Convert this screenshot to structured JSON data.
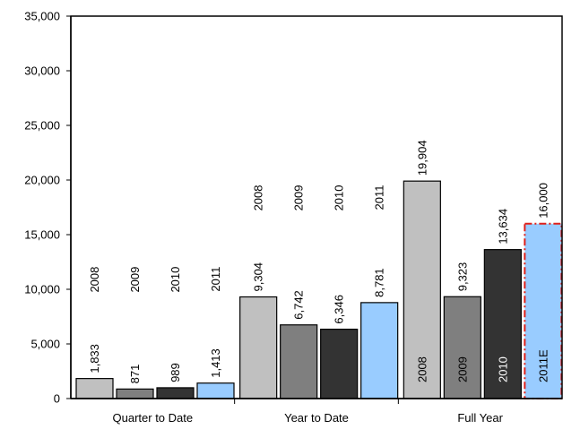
{
  "chart_data": {
    "type": "bar",
    "categories": [
      "Quarter to Date",
      "Year to Date",
      "Full Year"
    ],
    "y_ticks": [
      "0",
      "5,000",
      "10,000",
      "15,000",
      "20,000",
      "25,000",
      "30,000",
      "35,000"
    ],
    "ylim": [
      0,
      35000
    ],
    "grid": false,
    "legend": "none",
    "groups": [
      {
        "category": "Quarter to Date",
        "bars": [
          {
            "year": "2008",
            "value": 1833,
            "value_label": "1,833",
            "color": "#c0c0c0",
            "estimate": false
          },
          {
            "year": "2009",
            "value": 871,
            "value_label": "871",
            "color": "#7f7f7f",
            "estimate": false
          },
          {
            "year": "2010",
            "value": 989,
            "value_label": "989",
            "color": "#333333",
            "estimate": false
          },
          {
            "year": "2011",
            "value": 1413,
            "value_label": "1,413",
            "color": "#99ccff",
            "estimate": false
          }
        ]
      },
      {
        "category": "Year to Date",
        "bars": [
          {
            "year": "2008",
            "value": 9304,
            "value_label": "9,304",
            "color": "#c0c0c0",
            "estimate": false
          },
          {
            "year": "2009",
            "value": 6742,
            "value_label": "6,742",
            "color": "#7f7f7f",
            "estimate": false
          },
          {
            "year": "2010",
            "value": 6346,
            "value_label": "6,346",
            "color": "#333333",
            "estimate": false
          },
          {
            "year": "2011",
            "value": 8781,
            "value_label": "8,781",
            "color": "#99ccff",
            "estimate": false
          }
        ]
      },
      {
        "category": "Full Year",
        "bars": [
          {
            "year": "2008",
            "value": 19904,
            "value_label": "19,904",
            "color": "#c0c0c0",
            "estimate": false
          },
          {
            "year": "2009",
            "value": 9323,
            "value_label": "9,323",
            "color": "#7f7f7f",
            "estimate": false
          },
          {
            "year": "2010",
            "value": 13634,
            "value_label": "13,634",
            "color": "#333333",
            "estimate": false
          },
          {
            "year": "2011E",
            "value": 16000,
            "value_label": "16,000",
            "color": "#99ccff",
            "estimate": true
          }
        ]
      }
    ]
  }
}
